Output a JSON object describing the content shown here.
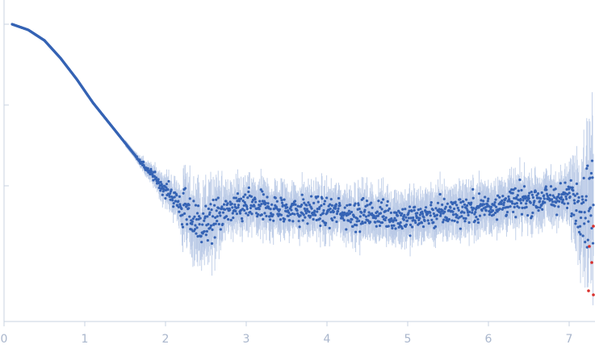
{
  "chart_data": {
    "type": "scatter",
    "title": "",
    "xlabel": "",
    "ylabel": "",
    "xlim": [
      0,
      7.32
    ],
    "y_scale": "log",
    "ylim_log10": [
      -3.7,
      0.3
    ],
    "x_ticks": [
      "0",
      "1",
      "2",
      "3",
      "4",
      "5",
      "6",
      "7"
    ],
    "y_ticks_log10": [
      0,
      -1,
      -2
    ],
    "grid": false,
    "legend": "none",
    "colors": {
      "points": "#3563b4",
      "error_bars": "#b9c9e6",
      "outliers": "#d9302c",
      "axis": "#c9d3e2",
      "tick_labels": "#a9b6cc"
    },
    "series": [
      {
        "points_log10_by_segment": [
          {
            "x": 0.1,
            "y": 0.0
          },
          {
            "x": 0.3,
            "y": -0.07
          },
          {
            "x": 0.5,
            "y": -0.2
          },
          {
            "x": 0.7,
            "y": -0.42
          },
          {
            "x": 0.9,
            "y": -0.68
          },
          {
            "x": 1.1,
            "y": -0.97
          },
          {
            "x": 1.3,
            "y": -1.22
          },
          {
            "x": 1.5,
            "y": -1.47
          },
          {
            "x": 1.7,
            "y": -1.72
          },
          {
            "x": 1.9,
            "y": -1.94
          },
          {
            "x": 2.1,
            "y": -2.14
          },
          {
            "x": 2.3,
            "y": -2.4
          },
          {
            "x": 2.5,
            "y": -2.5
          },
          {
            "x": 2.7,
            "y": -2.35
          },
          {
            "x": 3.0,
            "y": -2.25
          },
          {
            "x": 3.5,
            "y": -2.3
          },
          {
            "x": 4.0,
            "y": -2.32
          },
          {
            "x": 4.5,
            "y": -2.35
          },
          {
            "x": 5.0,
            "y": -2.4
          },
          {
            "x": 5.5,
            "y": -2.32
          },
          {
            "x": 6.0,
            "y": -2.25
          },
          {
            "x": 6.5,
            "y": -2.17
          },
          {
            "x": 7.0,
            "y": -2.15
          },
          {
            "x": 7.3,
            "y": -2.2
          }
        ]
      }
    ],
    "outliers_log10": [
      {
        "x": 7.25,
        "y": -2.75
      },
      {
        "x": 7.28,
        "y": -2.95
      },
      {
        "x": 7.3,
        "y": -2.5
      },
      {
        "x": 7.24,
        "y": -3.3
      },
      {
        "x": 7.3,
        "y": -3.35
      }
    ]
  }
}
